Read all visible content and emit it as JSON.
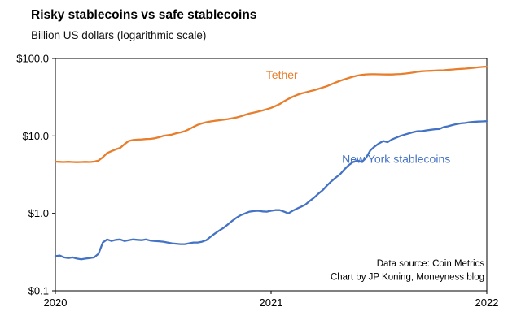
{
  "chart_data": {
    "type": "line",
    "title": "Risky stablecoins vs safe stablecoins",
    "subtitle": "Billion US dollars (logarithmic scale)",
    "y_scale": "log",
    "ylim": [
      0.1,
      100
    ],
    "xlim": [
      2020,
      2022
    ],
    "grid": false,
    "legend": "inline-annotations",
    "y_ticks": [
      {
        "value": 100,
        "label": "$100.0"
      },
      {
        "value": 10,
        "label": "$10.0"
      },
      {
        "value": 1,
        "label": "$1.0"
      },
      {
        "value": 0.1,
        "label": "$0.1"
      }
    ],
    "x_ticks": [
      {
        "value": 2020,
        "label": "2020"
      },
      {
        "value": 2021,
        "label": "2021"
      },
      {
        "value": 2022,
        "label": "2022"
      }
    ],
    "x_start": 2020,
    "x_step": 0.02,
    "series": [
      {
        "name": "Tether",
        "color": "#e87d2b",
        "values": [
          4.65,
          4.62,
          4.6,
          4.63,
          4.6,
          4.58,
          4.6,
          4.62,
          4.6,
          4.65,
          4.8,
          5.3,
          6.0,
          6.35,
          6.7,
          7.0,
          7.8,
          8.6,
          8.85,
          8.95,
          9.0,
          9.1,
          9.15,
          9.3,
          9.6,
          10.0,
          10.2,
          10.4,
          10.8,
          11.1,
          11.5,
          12.2,
          13.1,
          13.9,
          14.5,
          15.0,
          15.4,
          15.7,
          15.9,
          16.2,
          16.5,
          16.9,
          17.3,
          17.9,
          18.7,
          19.5,
          20.0,
          20.6,
          21.3,
          22.1,
          23.0,
          24.3,
          25.8,
          28.0,
          30.0,
          32.0,
          33.8,
          35.3,
          36.5,
          37.8,
          39.0,
          40.5,
          42.2,
          44.0,
          46.5,
          49.0,
          51.5,
          53.8,
          56.0,
          58.2,
          60.0,
          61.5,
          62.3,
          62.6,
          62.6,
          62.5,
          62.3,
          62.1,
          62.2,
          62.6,
          63.0,
          63.8,
          64.7,
          66.0,
          67.5,
          68.5,
          69.0,
          69.3,
          69.8,
          70.1,
          70.5,
          71.3,
          72.0,
          72.8,
          73.4,
          74.0,
          74.8,
          75.8,
          76.8,
          77.7,
          78.5
        ]
      },
      {
        "name": "New York stablecoins",
        "color": "#4472c4",
        "values": [
          0.28,
          0.285,
          0.27,
          0.265,
          0.27,
          0.26,
          0.255,
          0.26,
          0.265,
          0.27,
          0.3,
          0.42,
          0.46,
          0.44,
          0.455,
          0.46,
          0.44,
          0.45,
          0.46,
          0.455,
          0.45,
          0.46,
          0.445,
          0.44,
          0.435,
          0.43,
          0.42,
          0.41,
          0.405,
          0.4,
          0.4,
          0.41,
          0.42,
          0.42,
          0.43,
          0.45,
          0.5,
          0.55,
          0.6,
          0.65,
          0.72,
          0.8,
          0.88,
          0.95,
          1.0,
          1.05,
          1.07,
          1.08,
          1.06,
          1.05,
          1.08,
          1.1,
          1.1,
          1.05,
          1.0,
          1.08,
          1.15,
          1.22,
          1.3,
          1.45,
          1.6,
          1.8,
          2.0,
          2.3,
          2.6,
          2.9,
          3.2,
          3.7,
          4.2,
          4.6,
          4.8,
          4.6,
          5.2,
          6.5,
          7.3,
          8.0,
          8.6,
          8.3,
          9.0,
          9.5,
          10.0,
          10.4,
          10.8,
          11.2,
          11.5,
          11.5,
          11.8,
          12.0,
          12.2,
          12.3,
          13.0,
          13.3,
          13.8,
          14.2,
          14.5,
          14.7,
          15.0,
          15.2,
          15.3,
          15.4,
          15.5
        ]
      }
    ],
    "annotations": [
      {
        "id": "tether",
        "text": "Tether",
        "x": 2021.05,
        "y": 55,
        "color": "#e87d2b"
      },
      {
        "id": "new-york-stablecoins",
        "text": "New York stablecoins",
        "x": 2021.58,
        "y": 4.5,
        "color": "#4472c4"
      }
    ],
    "source_lines": [
      "Data source: Coin Metrics",
      "Chart by JP Koning, Moneyness blog"
    ],
    "axis_color": "#000000",
    "tick_label_color": "#000000",
    "source_text_color": "#000000"
  }
}
